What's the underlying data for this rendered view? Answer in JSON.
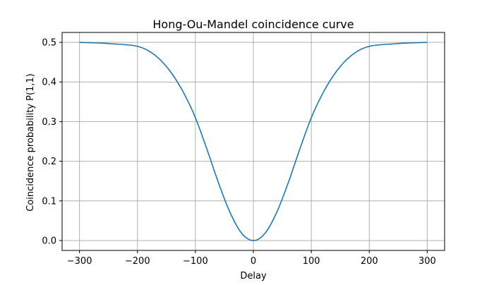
{
  "chart_data": {
    "type": "line",
    "title": "Hong-Ou-Mandel coincidence curve",
    "xlabel": "Delay",
    "ylabel": "Coincidence probability P(1,1)",
    "xlim": [
      -330,
      330
    ],
    "ylim": [
      -0.025,
      0.525
    ],
    "xticks": [
      -300,
      -200,
      -100,
      0,
      100,
      200,
      300
    ],
    "xtick_labels": [
      "−300",
      "−200",
      "−100",
      "0",
      "100",
      "200",
      "300"
    ],
    "yticks": [
      0.0,
      0.1,
      0.2,
      0.3,
      0.4,
      0.5
    ],
    "ytick_labels": [
      "0.0",
      "0.1",
      "0.2",
      "0.3",
      "0.4",
      "0.5"
    ],
    "grid": true,
    "series": [
      {
        "color": "#1f77b4",
        "x": [
          -300,
          -280,
          -260,
          -240,
          -220,
          -200,
          -180,
          -160,
          -140,
          -120,
          -100,
          -80,
          -60,
          -40,
          -20,
          0,
          20,
          40,
          60,
          80,
          100,
          120,
          140,
          160,
          180,
          200,
          220,
          240,
          260,
          280,
          300
        ],
        "y": [
          0.5,
          0.499,
          0.498,
          0.496,
          0.494,
          0.49,
          0.478,
          0.455,
          0.42,
          0.372,
          0.31,
          0.23,
          0.145,
          0.07,
          0.018,
          0.0,
          0.018,
          0.07,
          0.145,
          0.23,
          0.31,
          0.372,
          0.42,
          0.455,
          0.478,
          0.49,
          0.494,
          0.496,
          0.498,
          0.499,
          0.5
        ]
      }
    ]
  }
}
